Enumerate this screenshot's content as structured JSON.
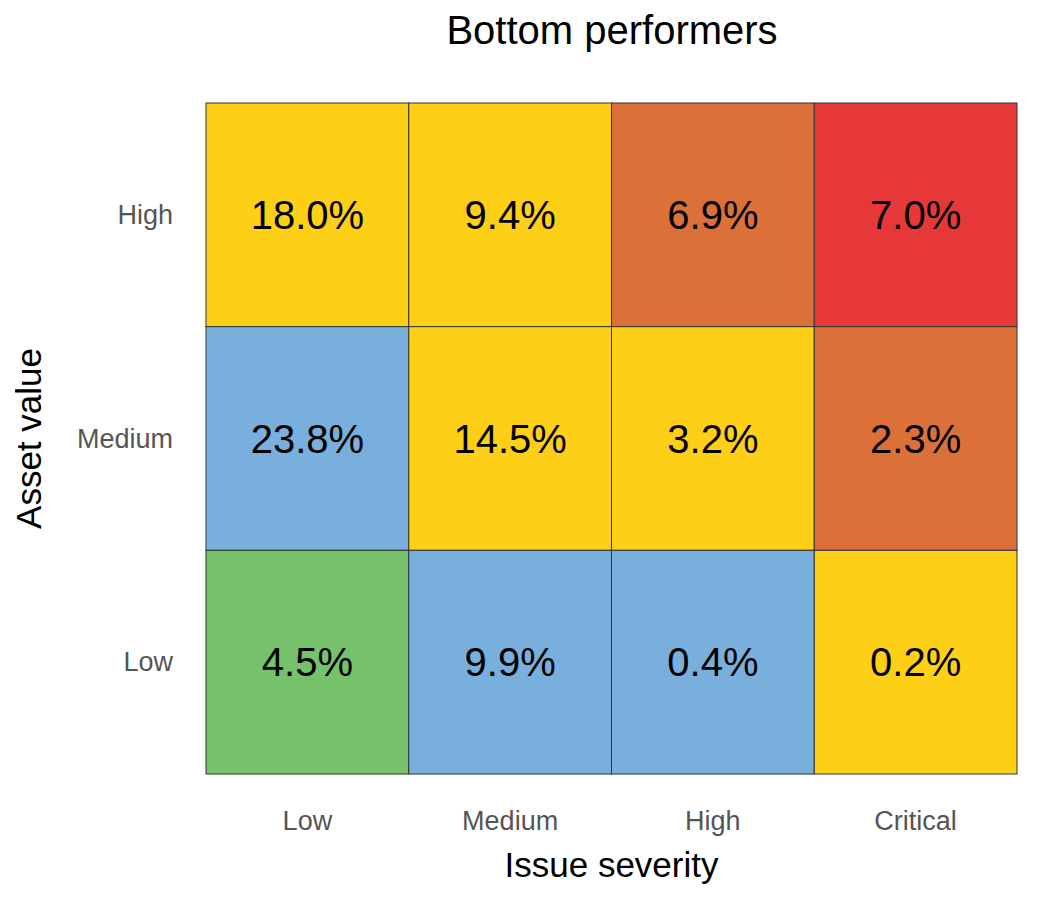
{
  "chart_data": {
    "type": "heatmap",
    "title": "Bottom performers",
    "x_label": "Issue severity",
    "y_label": "Asset value",
    "x_categories": [
      "Low",
      "Medium",
      "High",
      "Critical"
    ],
    "y_categories": [
      "High",
      "Medium",
      "Low"
    ],
    "cells": [
      [
        18.0,
        9.4,
        6.9,
        7.0
      ],
      [
        23.8,
        14.5,
        3.2,
        2.3
      ],
      [
        4.5,
        9.9,
        0.4,
        0.2
      ]
    ],
    "value_labels": [
      [
        "18.0%",
        "9.4%",
        "6.9%",
        "7.0%"
      ],
      [
        "23.8%",
        "14.5%",
        "3.2%",
        "2.3%"
      ],
      [
        "4.5%",
        "9.9%",
        "0.4%",
        "0.2%"
      ]
    ],
    "colors": [
      [
        "#fdd017",
        "#fdd017",
        "#db7038",
        "#e63838"
      ],
      [
        "#78afdc",
        "#fdd017",
        "#fdd017",
        "#db7038"
      ],
      [
        "#76c26a",
        "#78afdc",
        "#78afdc",
        "#fdd017"
      ]
    ],
    "data_labels": true
  }
}
